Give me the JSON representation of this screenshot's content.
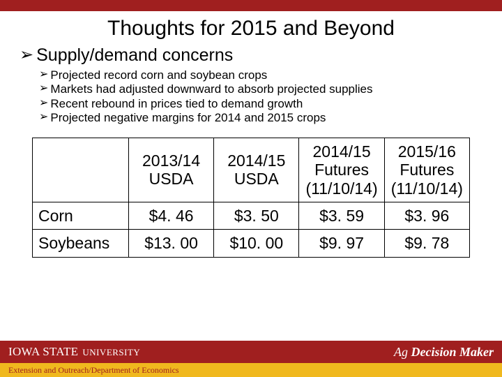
{
  "colors": {
    "brand_red": "#a01f1f",
    "brand_gold": "#f0b81e",
    "text": "#000000",
    "footer_text": "#ffffff"
  },
  "title": "Thoughts for 2015 and Beyond",
  "bullets": {
    "lvl1": "Supply/demand concerns",
    "lvl2": [
      "Projected record corn and soybean crops",
      "Markets had adjusted downward to absorb projected supplies",
      "Recent rebound in prices tied to demand growth",
      "Projected negative margins for 2014 and 2015 crops"
    ]
  },
  "table": {
    "columns": [
      "2013/14 USDA",
      "2014/15 USDA",
      "2014/15 Futures (11/10/14)",
      "2015/16 Futures (11/10/14)"
    ],
    "rows": [
      {
        "label": "Corn",
        "values": [
          "$4. 46",
          "$3. 50",
          "$3. 59",
          "$3. 96"
        ]
      },
      {
        "label": "Soybeans",
        "values": [
          "$13. 00",
          "$10. 00",
          "$9. 97",
          "$9. 78"
        ]
      }
    ]
  },
  "footer": {
    "isu_main": "IOWA STATE",
    "isu_sub": "UNIVERSITY",
    "adm_pre": "Ag ",
    "adm_bold": "Decision Maker",
    "extension": "Extension and Outreach/Department of Economics"
  }
}
